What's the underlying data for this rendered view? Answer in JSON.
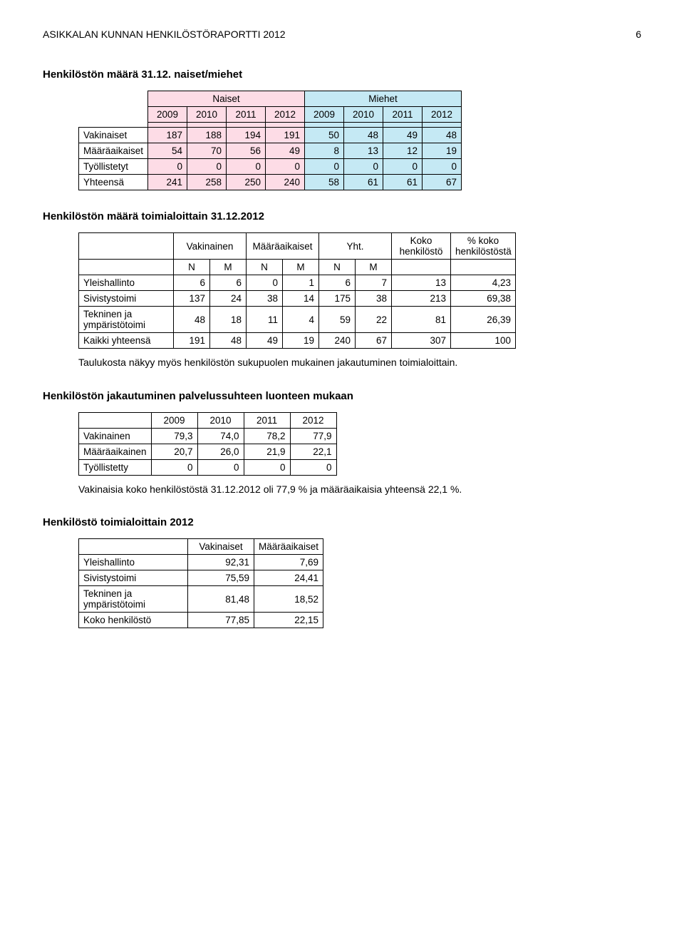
{
  "header": {
    "title": "ASIKKALAN KUNNAN HENKILÖSTÖRAPORTTI 2012",
    "page": "6"
  },
  "section1": {
    "title": "Henkilöstön määrä 31.12. naiset/miehet",
    "hgroup1": "Naiset",
    "hgroup2": "Miehet",
    "years": [
      "2009",
      "2010",
      "2011",
      "2012",
      "2009",
      "2010",
      "2011",
      "2012"
    ],
    "rows": [
      {
        "label": "Vakinaiset",
        "v": [
          "187",
          "188",
          "194",
          "191",
          "50",
          "48",
          "49",
          "48"
        ]
      },
      {
        "label": "Määräaikaiset",
        "v": [
          "54",
          "70",
          "56",
          "49",
          "8",
          "13",
          "12",
          "19"
        ]
      },
      {
        "label": "Työllistetyt",
        "v": [
          "0",
          "0",
          "0",
          "0",
          "0",
          "0",
          "0",
          "0"
        ]
      },
      {
        "label": "Yhteensä",
        "v": [
          "241",
          "258",
          "250",
          "240",
          "58",
          "61",
          "61",
          "67"
        ]
      }
    ]
  },
  "section2": {
    "title": "Henkilöstön määrä toimialoittain 31.12.2012",
    "h_vak": "Vakinainen",
    "h_maa": "Määräaikaiset",
    "h_yht": "Yht.",
    "h_koko": "Koko henkilöstö",
    "h_pct": "% koko henkilöstöstä",
    "subN": "N",
    "subM": "M",
    "rows": [
      {
        "label": "Yleishallinto",
        "v": [
          "6",
          "6",
          "0",
          "1",
          "6",
          "7",
          "13",
          "4,23"
        ]
      },
      {
        "label": "Sivistystoimi",
        "v": [
          "137",
          "24",
          "38",
          "14",
          "175",
          "38",
          "213",
          "69,38"
        ]
      },
      {
        "label": "Tekninen ja ympäristötoimi",
        "v": [
          "48",
          "18",
          "11",
          "4",
          "59",
          "22",
          "81",
          "26,39"
        ]
      },
      {
        "label": "Kaikki yhteensä",
        "v": [
          "191",
          "48",
          "49",
          "19",
          "240",
          "67",
          "307",
          "100"
        ]
      }
    ],
    "note": "Taulukosta näkyy myös henkilöstön sukupuolen mukainen jakautuminen toimialoittain."
  },
  "section3": {
    "title": "Henkilöstön jakautuminen palvelussuhteen luonteen mukaan",
    "years": [
      "2009",
      "2010",
      "2011",
      "2012"
    ],
    "rows": [
      {
        "label": "Vakinainen",
        "v": [
          "79,3",
          "74,0",
          "78,2",
          "77,9"
        ]
      },
      {
        "label": "Määräaikainen",
        "v": [
          "20,7",
          "26,0",
          "21,9",
          "22,1"
        ]
      },
      {
        "label": "Työllistetty",
        "v": [
          "0",
          "0",
          "0",
          "0"
        ]
      }
    ],
    "note": "Vakinaisia koko henkilöstöstä 31.12.2012 oli 77,9 % ja määräaikaisia yhteensä 22,1 %."
  },
  "section4": {
    "title": "Henkilöstö toimialoittain 2012",
    "h_vak": "Vakinaiset",
    "h_maa": "Määräaikaiset",
    "rows": [
      {
        "label": "Yleishallinto",
        "v": [
          "92,31",
          "7,69"
        ]
      },
      {
        "label": "Sivistystoimi",
        "v": [
          "75,59",
          "24,41"
        ]
      },
      {
        "label": "Tekninen ja ympäristötoimi",
        "v": [
          "81,48",
          "18,52"
        ]
      },
      {
        "label": "Koko henkilöstö",
        "v": [
          "77,85",
          "22,15"
        ]
      }
    ]
  }
}
